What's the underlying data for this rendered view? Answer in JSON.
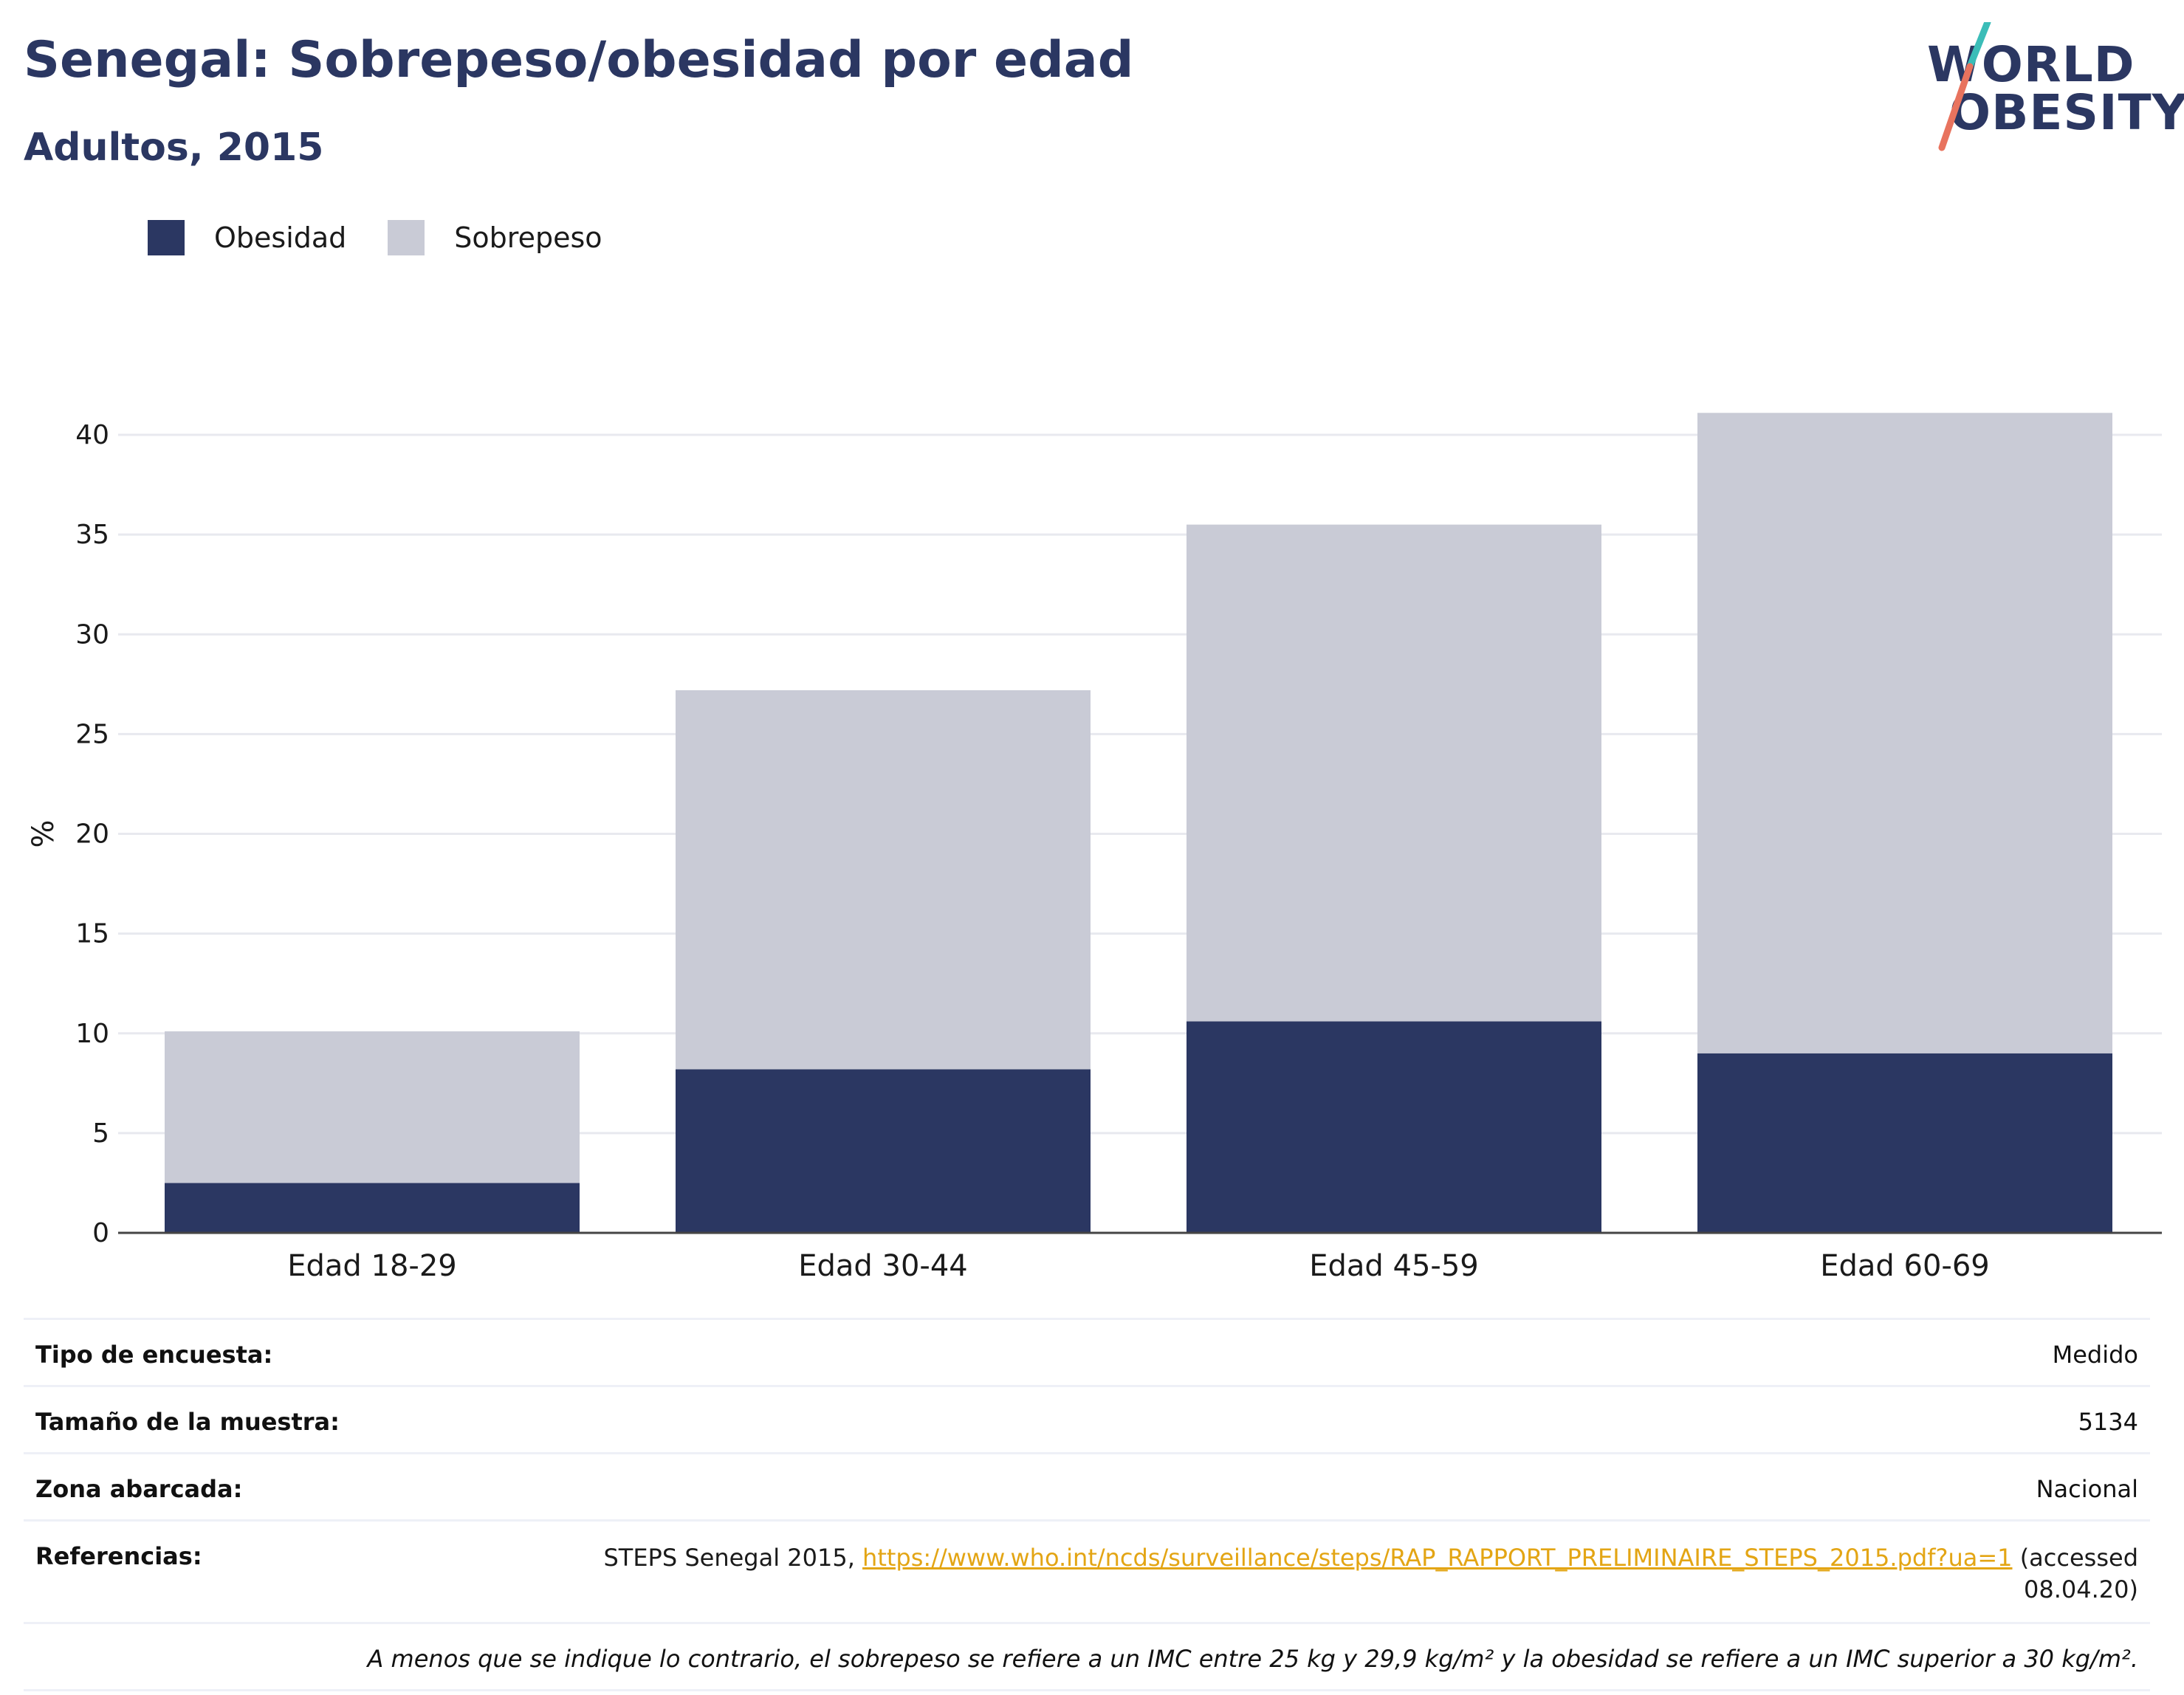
{
  "header": {
    "title": "Senegal: Sobrepeso/obesidad por edad",
    "subtitle": "Adultos, 2015"
  },
  "logo": {
    "line1": "WORLD",
    "line2": "OBESITY",
    "colors": {
      "text": "#2b3762",
      "teal": "#3bbdb8",
      "coral": "#e8735e"
    }
  },
  "legend": [
    {
      "label": "Obesidad",
      "color": "#2b3762"
    },
    {
      "label": "Sobrepeso",
      "color": "#c9cbd6"
    }
  ],
  "chart_data": {
    "type": "bar",
    "stacked": true,
    "categories": [
      "Edad 18-29",
      "Edad 30-44",
      "Edad 45-59",
      "Edad 60-69"
    ],
    "series": [
      {
        "name": "Obesidad",
        "values": [
          2.5,
          8.2,
          10.6,
          9.0
        ],
        "color": "#2b3762"
      },
      {
        "name": "Sobrepeso",
        "values": [
          7.6,
          19.0,
          24.9,
          32.1
        ],
        "color": "#c9cbd6"
      }
    ],
    "ylabel": "%",
    "ylim": [
      0,
      42
    ],
    "yticks": [
      0,
      5,
      10,
      15,
      20,
      25,
      30,
      35,
      40
    ],
    "grid": true,
    "legend_position": "top-left"
  },
  "info": {
    "survey_type_label": "Tipo de encuesta:",
    "survey_type_value": "Medido",
    "sample_size_label": "Tamaño de la muestra:",
    "sample_size_value": "5134",
    "area_label": "Zona abarcada:",
    "area_value": "Nacional",
    "references_label": "Referencias:",
    "references_prefix": "STEPS Senegal 2015, ",
    "references_link": "https://www.who.int/ncds/surveillance/steps/RAP_RAPPORT_PRELIMINAIRE_STEPS_2015.pdf?ua=1",
    "references_suffix": " (accessed 08.04.20)",
    "note": "A menos que se indique lo contrario, el sobrepeso se refiere a un IMC entre 25 kg y 29,9 kg/m² y la obesidad se refiere a un IMC superior a 30 kg/m²."
  }
}
